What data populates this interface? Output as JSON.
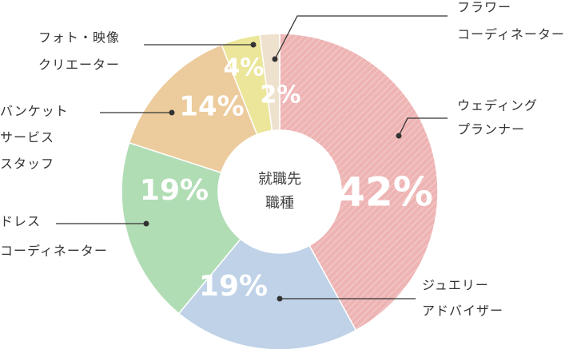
{
  "chart_data": {
    "type": "donut",
    "center_label": [
      "就職先",
      "職種"
    ],
    "categories": [
      [
        "ウェディング",
        "プランナー"
      ],
      [
        "ジュエリー",
        "アドバイザー"
      ],
      [
        "ドレス",
        "コーディネーター"
      ],
      [
        "バンケット",
        "サービス",
        "スタッフ"
      ],
      [
        "フォト・映像",
        "クリエーター"
      ],
      [
        "フラワー",
        "コーディネーター"
      ]
    ],
    "values": [
      42,
      19,
      19,
      14,
      4,
      2
    ],
    "value_labels": [
      "42%",
      "19%",
      "19%",
      "14%",
      "4%",
      "2%"
    ],
    "colors": [
      "#eeb4b4",
      "#bfd2e7",
      "#b1ddb5",
      "#eccb9d",
      "#ece69a",
      "#eee1ce"
    ],
    "hatched": [
      true,
      false,
      false,
      false,
      false,
      false
    ]
  }
}
